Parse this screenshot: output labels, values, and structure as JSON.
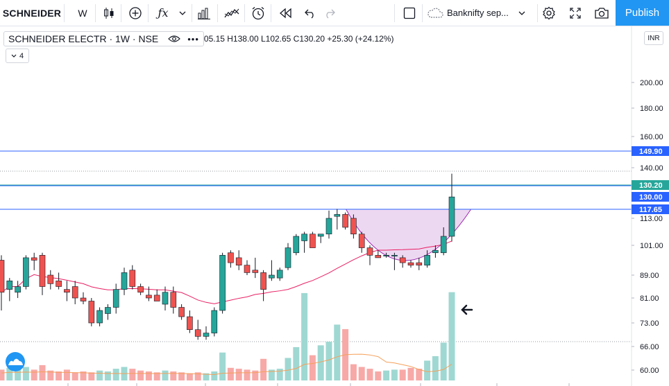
{
  "toolbar": {
    "symbol": "SCHNEIDER",
    "interval": "W",
    "fx_label": "ƒx",
    "layout_name": "Banknifty sep...",
    "publish_label": "Publish"
  },
  "legend": {
    "title": "SCHNEIDER ELECTR · 1W · NSE",
    "ohlc": "05.15  H138.00  L102.65  C130.20  +25.30 (+24.12%)",
    "collapse_label": "4"
  },
  "currency": "INR",
  "colors": {
    "accent": "#2196f3",
    "up": "#26a69a",
    "down": "#ef5350",
    "line": "#2962ff",
    "ma": "#e91e63",
    "pattern": "#9c27b0"
  },
  "icons": [
    "candles-icon",
    "add-indicator-icon",
    "indicators-icon",
    "chevron-down-icon",
    "bars-icon",
    "compare-icon",
    "alert-icon",
    "replay-icon",
    "undo-icon",
    "redo-icon",
    "fullscreen-box-icon",
    "cloud-icon",
    "gear-icon",
    "expand-icon",
    "camera-icon",
    "arrow-left-icon",
    "tradingview-logo-icon"
  ],
  "chart_data": {
    "type": "candlestick",
    "y_axis_ticks": [
      "200.00",
      "180.00",
      "160.00",
      "140.00",
      "113.00",
      "101.00",
      "89.00",
      "81.00",
      "73.00",
      "66.00",
      "60.00"
    ],
    "y_axis_top_partial": "2",
    "price_lines": [
      {
        "label": "149.90",
        "color": "#2962ff"
      },
      {
        "label": "130.20",
        "color": "#26a69a"
      },
      {
        "label": "130.00",
        "color": "#2962ff"
      },
      {
        "label": "117.65",
        "color": "#2962ff"
      }
    ],
    "candles": [
      {
        "o": 95,
        "h": 97,
        "l": 77,
        "c": 83
      },
      {
        "o": 84,
        "h": 88,
        "l": 80,
        "c": 87
      },
      {
        "o": 83,
        "h": 87,
        "l": 81,
        "c": 85
      },
      {
        "o": 85,
        "h": 97,
        "l": 84,
        "c": 96
      },
      {
        "o": 96,
        "h": 98,
        "l": 91,
        "c": 95
      },
      {
        "o": 97,
        "h": 98,
        "l": 82,
        "c": 85
      },
      {
        "o": 89,
        "h": 91,
        "l": 84,
        "c": 86
      },
      {
        "o": 87,
        "h": 90,
        "l": 84,
        "c": 85
      },
      {
        "o": 84,
        "h": 87,
        "l": 80,
        "c": 83
      },
      {
        "o": 85,
        "h": 87,
        "l": 79,
        "c": 81
      },
      {
        "o": 81,
        "h": 83,
        "l": 79,
        "c": 80
      },
      {
        "o": 80,
        "h": 81,
        "l": 72,
        "c": 73
      },
      {
        "o": 73,
        "h": 78,
        "l": 72,
        "c": 77
      },
      {
        "o": 76,
        "h": 79,
        "l": 74,
        "c": 78
      },
      {
        "o": 78,
        "h": 86,
        "l": 76,
        "c": 84
      },
      {
        "o": 84,
        "h": 92,
        "l": 82,
        "c": 90
      },
      {
        "o": 91,
        "h": 93,
        "l": 84,
        "c": 85
      },
      {
        "o": 85,
        "h": 86,
        "l": 82,
        "c": 83
      },
      {
        "o": 82,
        "h": 85,
        "l": 80,
        "c": 81
      },
      {
        "o": 82,
        "h": 84,
        "l": 80,
        "c": 80
      },
      {
        "o": 79,
        "h": 85,
        "l": 77,
        "c": 83
      },
      {
        "o": 83,
        "h": 85,
        "l": 76,
        "c": 78
      },
      {
        "o": 78,
        "h": 79,
        "l": 74,
        "c": 75
      },
      {
        "o": 75,
        "h": 77,
        "l": 70,
        "c": 71
      },
      {
        "o": 71,
        "h": 74,
        "l": 68,
        "c": 69
      },
      {
        "o": 69,
        "h": 72,
        "l": 68,
        "c": 70
      },
      {
        "o": 70,
        "h": 78,
        "l": 69,
        "c": 77
      },
      {
        "o": 77,
        "h": 98,
        "l": 76,
        "c": 97
      },
      {
        "o": 98,
        "h": 99,
        "l": 92,
        "c": 94
      },
      {
        "o": 96,
        "h": 99,
        "l": 91,
        "c": 93
      },
      {
        "o": 93,
        "h": 95,
        "l": 89,
        "c": 90
      },
      {
        "o": 91,
        "h": 96,
        "l": 88,
        "c": 90
      },
      {
        "o": 90,
        "h": 91,
        "l": 80,
        "c": 84
      },
      {
        "o": 88,
        "h": 95,
        "l": 87,
        "c": 89
      },
      {
        "o": 88,
        "h": 92,
        "l": 87,
        "c": 91
      },
      {
        "o": 92,
        "h": 102,
        "l": 91,
        "c": 100
      },
      {
        "o": 98,
        "h": 106,
        "l": 97,
        "c": 105
      },
      {
        "o": 103,
        "h": 107,
        "l": 98,
        "c": 106
      },
      {
        "o": 106,
        "h": 107,
        "l": 100,
        "c": 100
      },
      {
        "o": 105,
        "h": 106,
        "l": 102,
        "c": 106
      },
      {
        "o": 106,
        "h": 117,
        "l": 104,
        "c": 113
      },
      {
        "o": 114,
        "h": 118,
        "l": 108,
        "c": 115
      },
      {
        "o": 115,
        "h": 116,
        "l": 108,
        "c": 109
      },
      {
        "o": 113,
        "h": 115,
        "l": 104,
        "c": 106
      },
      {
        "o": 106,
        "h": 107,
        "l": 98,
        "c": 100
      },
      {
        "o": 100,
        "h": 101,
        "l": 93,
        "c": 97
      },
      {
        "o": 97,
        "h": 99,
        "l": 96,
        "c": 96
      },
      {
        "o": 97,
        "h": 98,
        "l": 96,
        "c": 97
      },
      {
        "o": 97,
        "h": 98,
        "l": 91,
        "c": 97
      },
      {
        "o": 96,
        "h": 97,
        "l": 92,
        "c": 94
      },
      {
        "o": 94,
        "h": 95,
        "l": 92,
        "c": 93
      },
      {
        "o": 94,
        "h": 96,
        "l": 91,
        "c": 93
      },
      {
        "o": 93,
        "h": 99,
        "l": 92,
        "c": 97
      },
      {
        "o": 98,
        "h": 101,
        "l": 96,
        "c": 99
      },
      {
        "o": 98,
        "h": 109,
        "l": 97,
        "c": 105
      },
      {
        "o": 105,
        "h": 138,
        "l": 102.65,
        "c": 130.2
      }
    ],
    "volume_bars": [
      12,
      14,
      13,
      15,
      12,
      17,
      11,
      10,
      12,
      9,
      10,
      9,
      11,
      10,
      13,
      15,
      13,
      11,
      10,
      9,
      11,
      10,
      9,
      8,
      9,
      8,
      10,
      31,
      14,
      13,
      12,
      11,
      24,
      12,
      13,
      25,
      37,
      97,
      28,
      39,
      43,
      62,
      57,
      18,
      15,
      13,
      10,
      11,
      12,
      12,
      14,
      13,
      22,
      27,
      42,
      98
    ],
    "volume_ma": "dynamic",
    "annotations": [
      "cup pattern highlight",
      "arrow pointing left at volume spike"
    ]
  }
}
